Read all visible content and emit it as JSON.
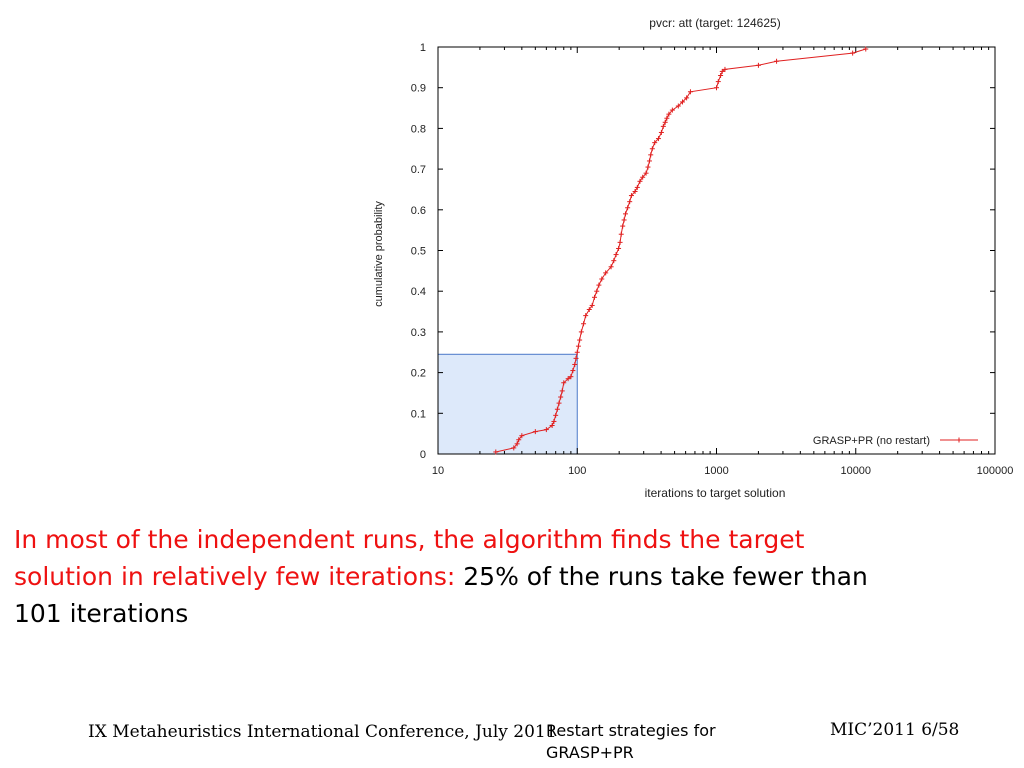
{
  "chart_data": {
    "type": "line",
    "title": "pvcr: att (target: 124625)",
    "xlabel": "iterations to target solution",
    "ylabel": "cumulative probability",
    "xscale": "log",
    "xlim": [
      10,
      100000
    ],
    "ylim": [
      0,
      1
    ],
    "x_ticks": [
      "10",
      "100",
      "1000",
      "10000",
      "100000"
    ],
    "y_ticks": [
      "0",
      "0.1",
      "0.2",
      "0.3",
      "0.4",
      "0.5",
      "0.6",
      "0.7",
      "0.8",
      "0.9",
      "1"
    ],
    "legend": {
      "label": "GRASP+PR (no restart)",
      "position": "bottom-right"
    },
    "line_color": "#e02020",
    "highlight": {
      "x_max": 100,
      "y_max": 0.245,
      "color": "#dde9fa"
    },
    "series": [
      {
        "name": "GRASP+PR (no restart)",
        "points": [
          [
            26,
            0.005
          ],
          [
            35,
            0.015
          ],
          [
            37,
            0.025
          ],
          [
            38,
            0.035
          ],
          [
            40,
            0.045
          ],
          [
            50,
            0.055
          ],
          [
            60,
            0.06
          ],
          [
            66,
            0.07
          ],
          [
            68,
            0.08
          ],
          [
            70,
            0.095
          ],
          [
            72,
            0.11
          ],
          [
            74,
            0.125
          ],
          [
            76,
            0.14
          ],
          [
            78,
            0.155
          ],
          [
            80,
            0.175
          ],
          [
            86,
            0.185
          ],
          [
            90,
            0.19
          ],
          [
            93,
            0.205
          ],
          [
            96,
            0.22
          ],
          [
            98,
            0.235
          ],
          [
            100,
            0.25
          ],
          [
            102,
            0.265
          ],
          [
            104,
            0.28
          ],
          [
            107,
            0.3
          ],
          [
            111,
            0.32
          ],
          [
            115,
            0.34
          ],
          [
            122,
            0.355
          ],
          [
            128,
            0.365
          ],
          [
            133,
            0.385
          ],
          [
            138,
            0.4
          ],
          [
            143,
            0.415
          ],
          [
            150,
            0.43
          ],
          [
            160,
            0.445
          ],
          [
            175,
            0.46
          ],
          [
            183,
            0.475
          ],
          [
            190,
            0.49
          ],
          [
            198,
            0.505
          ],
          [
            203,
            0.52
          ],
          [
            207,
            0.54
          ],
          [
            212,
            0.56
          ],
          [
            217,
            0.575
          ],
          [
            222,
            0.59
          ],
          [
            230,
            0.605
          ],
          [
            238,
            0.62
          ],
          [
            245,
            0.635
          ],
          [
            260,
            0.645
          ],
          [
            270,
            0.655
          ],
          [
            282,
            0.67
          ],
          [
            295,
            0.68
          ],
          [
            312,
            0.69
          ],
          [
            322,
            0.705
          ],
          [
            330,
            0.72
          ],
          [
            337,
            0.735
          ],
          [
            346,
            0.75
          ],
          [
            360,
            0.765
          ],
          [
            383,
            0.775
          ],
          [
            402,
            0.79
          ],
          [
            415,
            0.805
          ],
          [
            428,
            0.815
          ],
          [
            440,
            0.825
          ],
          [
            455,
            0.835
          ],
          [
            482,
            0.845
          ],
          [
            532,
            0.855
          ],
          [
            570,
            0.865
          ],
          [
            610,
            0.875
          ],
          [
            650,
            0.89
          ],
          [
            1000,
            0.9
          ],
          [
            1030,
            0.915
          ],
          [
            1070,
            0.93
          ],
          [
            1100,
            0.94
          ],
          [
            1150,
            0.945
          ],
          [
            2000,
            0.955
          ],
          [
            2700,
            0.965
          ],
          [
            9500,
            0.985
          ],
          [
            11800,
            0.995
          ]
        ]
      }
    ]
  },
  "caption": {
    "red_text": "In most of the independent runs, the algorithm finds the target solution in relatively few iterations:",
    "black_text": " 25% of the runs take fewer than 101 iterations"
  },
  "footer": {
    "left": "IX Metaheuristics International Conference, July 2011",
    "middle": "Restart strategies for GRASP+PR",
    "right": "MIC’2011 6/58"
  }
}
